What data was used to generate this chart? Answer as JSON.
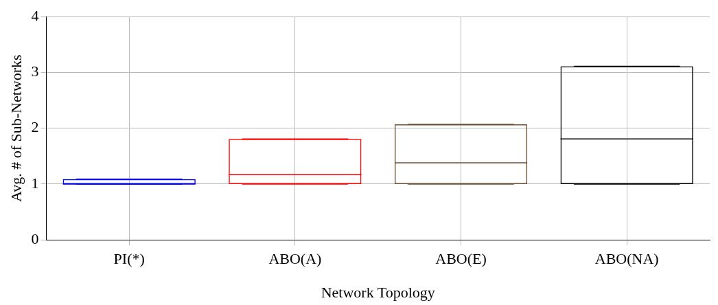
{
  "chart_data": {
    "type": "box",
    "xlabel": "Network Topology",
    "ylabel": "Avg. # of Sub-Networks",
    "categories": [
      "PI(*)",
      "ABO(A)",
      "ABO(E)",
      "ABO(NA)"
    ],
    "boxes": [
      {
        "low": 1,
        "q1": 1,
        "median": 1.0,
        "q3": 1.09,
        "high": 1.09
      },
      {
        "low": 1,
        "q1": 1,
        "median": 1.17,
        "q3": 1.81,
        "high": 1.81
      },
      {
        "low": 1,
        "q1": 1,
        "median": 1.38,
        "q3": 2.07,
        "high": 2.07
      },
      {
        "low": 1,
        "q1": 1,
        "median": 1.81,
        "q3": 3.11,
        "high": 3.11
      }
    ],
    "colors": [
      "#0000ff",
      "#ff0000",
      "#6e5033",
      "#000000"
    ],
    "ylim": [
      0,
      4
    ],
    "yticks": [
      0,
      1,
      2,
      3,
      4
    ],
    "grid": true
  }
}
